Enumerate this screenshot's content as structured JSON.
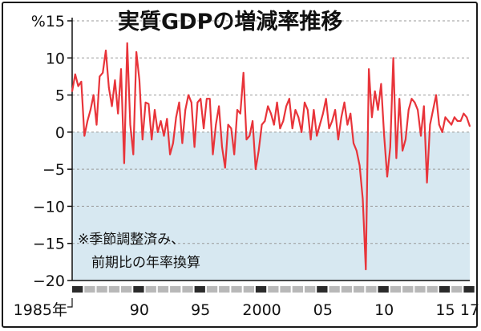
{
  "chart_data": {
    "type": "line",
    "title": "実質GDPの増減率推移",
    "y_unit_label": "%",
    "ylim": [
      -20,
      15
    ],
    "y_ticks": [
      15,
      10,
      5,
      0,
      -5,
      -10,
      -15,
      -20
    ],
    "y_tick_labels": [
      "%15",
      "10",
      "5",
      "0",
      "−5",
      "−10",
      "−15",
      "−20"
    ],
    "x_tick_labels": [
      {
        "year": 1985,
        "label": "1985年"
      },
      {
        "year": 1990,
        "label": "90"
      },
      {
        "year": 1995,
        "label": "95"
      },
      {
        "year": 2000,
        "label": "2000"
      },
      {
        "year": 2005,
        "label": "05"
      },
      {
        "year": 2010,
        "label": "10"
      },
      {
        "year": 2015,
        "label": "15"
      },
      {
        "year": 2017,
        "label": "17"
      }
    ],
    "x_range": [
      1985,
      2017.5
    ],
    "note_lines": [
      "※季節調整済み、",
      "　前期比の年率換算"
    ],
    "colors": {
      "line": "#e8343a",
      "negative_fill": "#d7e8f1",
      "axis": "#111111",
      "grid": "#9a9a9a"
    },
    "series": [
      {
        "frequency": "quarterly",
        "start": "1985Q1",
        "values": [
          5.5,
          7.8,
          6.2,
          6.8,
          -0.5,
          1.5,
          3.0,
          5.0,
          1.0,
          7.5,
          8.0,
          11.0,
          6.0,
          3.5,
          7.0,
          2.5,
          8.5,
          -4.2,
          12.0,
          1.0,
          -3.0,
          10.8,
          7.0,
          -1.0,
          4.0,
          3.8,
          -1.0,
          3.0,
          0.0,
          1.5,
          -0.5,
          1.8,
          -3.0,
          -1.5,
          2.0,
          4.0,
          -1.5,
          3.0,
          5.0,
          4.0,
          -2.0,
          4.0,
          4.5,
          0.5,
          4.5,
          4.5,
          -3.0,
          1.0,
          3.5,
          -2.0,
          -4.8,
          1.0,
          0.5,
          -3.0,
          3.0,
          2.5,
          8.0,
          -1.0,
          -0.5,
          1.5,
          -5.0,
          -2.5,
          1.0,
          1.5,
          3.5,
          2.5,
          1.0,
          4.0,
          0.5,
          1.5,
          3.5,
          4.5,
          0.5,
          3.0,
          2.0,
          0.0,
          4.0,
          3.0,
          -1.0,
          3.0,
          -0.5,
          1.0,
          2.5,
          4.5,
          0.5,
          1.5,
          3.0,
          -1.0,
          2.0,
          4.0,
          1.0,
          2.5,
          -1.5,
          -2.5,
          -4.5,
          -9.0,
          -18.5,
          8.5,
          2.0,
          5.5,
          3.0,
          6.5,
          -0.5,
          -6.0,
          -2.0,
          10.0,
          -3.5,
          4.5,
          -2.5,
          -1.0,
          3.0,
          4.5,
          4.0,
          3.0,
          -0.5,
          3.5,
          -6.8,
          1.0,
          3.0,
          5.0,
          1.0,
          0.0,
          2.0,
          1.5,
          1.0,
          2.0,
          1.5,
          1.5,
          2.5,
          2.0,
          0.8
        ]
      }
    ],
    "grid": "horizontal dashed",
    "legend": "none"
  }
}
